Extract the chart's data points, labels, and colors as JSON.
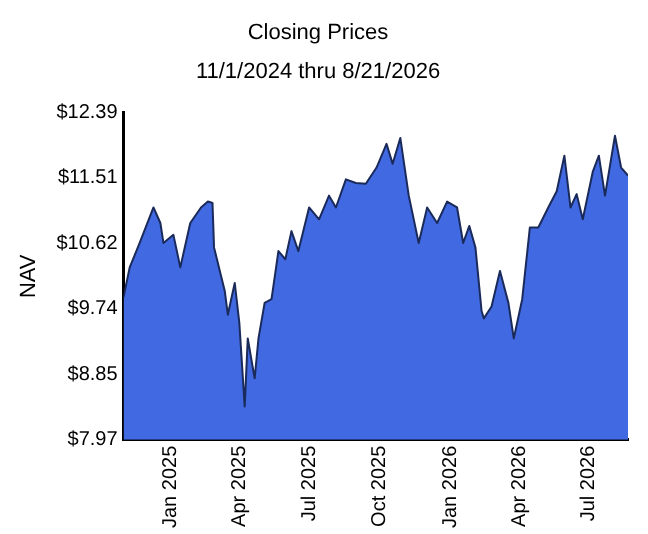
{
  "chart_data": {
    "type": "area",
    "title": "Closing Prices",
    "subtitle": "11/1/2024 thru 8/21/2026",
    "ylabel": "NAV",
    "x": [
      "2024-11-01",
      "2024-11-09",
      "2024-11-22",
      "2024-12-10",
      "2024-12-19",
      "2024-12-23",
      "2025-01-05",
      "2025-01-14",
      "2025-01-27",
      "2025-02-10",
      "2025-02-19",
      "2025-02-25",
      "2025-02-27",
      "2025-03-13",
      "2025-03-17",
      "2025-03-26",
      "2025-04-01",
      "2025-04-08",
      "2025-04-12",
      "2025-04-21",
      "2025-04-26",
      "2025-05-04",
      "2025-05-13",
      "2025-05-22",
      "2025-05-31",
      "2025-06-08",
      "2025-06-17",
      "2025-07-01",
      "2025-07-14",
      "2025-07-27",
      "2025-08-05",
      "2025-08-18",
      "2025-08-31",
      "2025-09-13",
      "2025-09-27",
      "2025-10-10",
      "2025-10-18",
      "2025-10-28",
      "2025-11-08",
      "2025-11-21",
      "2025-12-02",
      "2025-12-15",
      "2025-12-28",
      "2026-01-10",
      "2026-01-18",
      "2026-01-26",
      "2026-02-03",
      "2026-02-11",
      "2026-02-14",
      "2026-02-24",
      "2026-03-07",
      "2026-03-18",
      "2026-03-25",
      "2026-04-05",
      "2026-04-15",
      "2026-04-26",
      "2026-05-09",
      "2026-05-20",
      "2026-05-30",
      "2026-06-07",
      "2026-06-15",
      "2026-06-23",
      "2026-07-06",
      "2026-07-14",
      "2026-07-22",
      "2026-08-04",
      "2026-08-12",
      "2026-08-21"
    ],
    "series": [
      {
        "color": "#4169e1",
        "values": [
          9.9,
          10.3,
          10.63,
          11.11,
          10.9,
          10.63,
          10.74,
          10.3,
          10.9,
          11.11,
          11.19,
          11.17,
          10.57,
          9.98,
          9.66,
          10.09,
          9.55,
          8.42,
          9.34,
          8.8,
          9.34,
          9.82,
          9.87,
          10.52,
          10.41,
          10.79,
          10.52,
          11.11,
          10.95,
          11.27,
          11.11,
          11.49,
          11.44,
          11.43,
          11.65,
          11.97,
          11.7,
          12.05,
          11.27,
          10.63,
          11.11,
          10.9,
          11.19,
          11.11,
          10.63,
          10.86,
          10.57,
          9.71,
          9.61,
          9.77,
          10.25,
          9.82,
          9.34,
          9.87,
          10.84,
          10.84,
          11.11,
          11.33,
          11.81,
          11.11,
          11.29,
          10.95,
          11.59,
          11.81,
          11.27,
          12.08,
          11.65,
          11.54
        ]
      }
    ],
    "xlim": [
      "2024-11-01",
      "2026-08-21"
    ],
    "xticks": [
      {
        "value": "2025-01-01",
        "label": "Jan 2025"
      },
      {
        "value": "2025-04-01",
        "label": "Apr 2025"
      },
      {
        "value": "2025-07-01",
        "label": "Jul 2025"
      },
      {
        "value": "2025-10-01",
        "label": "Oct 2025"
      },
      {
        "value": "2026-01-01",
        "label": "Jan 2026"
      },
      {
        "value": "2026-04-01",
        "label": "Apr 2026"
      },
      {
        "value": "2026-07-01",
        "label": "Jul 2026"
      }
    ],
    "ylim": [
      7.97,
      12.39
    ],
    "yticks": [
      {
        "value": 7.97,
        "label": "$7.97"
      },
      {
        "value": 8.85,
        "label": "$8.85"
      },
      {
        "value": 9.74,
        "label": "$9.74"
      },
      {
        "value": 10.62,
        "label": "$10.62"
      },
      {
        "value": 11.51,
        "label": "$11.51"
      },
      {
        "value": 12.39,
        "label": "$12.39"
      }
    ],
    "grid": false,
    "legend": false,
    "marker": "none",
    "line_style": "solid"
  }
}
